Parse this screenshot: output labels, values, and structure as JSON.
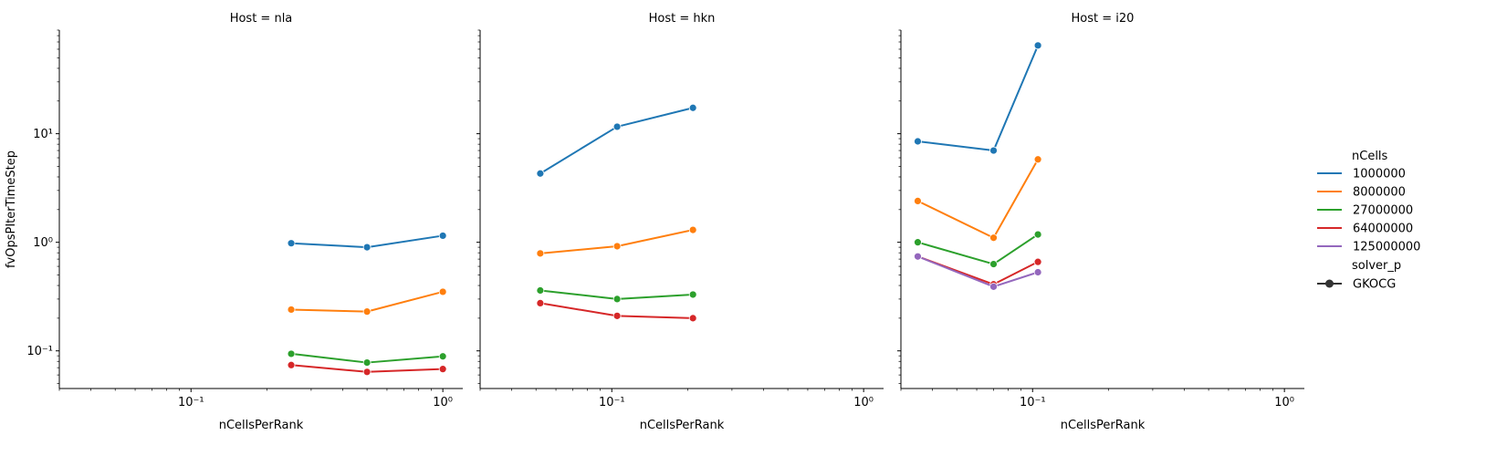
{
  "chart_data": {
    "type": "line",
    "x_scale": "log",
    "y_scale": "log",
    "xlabel": "nCellsPerRank",
    "ylabel": "fvOpsPIterTimeStep",
    "xlim": [
      0.03,
      1.2
    ],
    "ylim": [
      0.045,
      90
    ],
    "x_ticks": [
      {
        "value": 0.1,
        "label": "10⁻¹"
      },
      {
        "value": 1,
        "label": "10⁰"
      }
    ],
    "y_ticks": [
      {
        "value": 0.1,
        "label": "10⁻¹"
      },
      {
        "value": 1,
        "label": "10⁰"
      },
      {
        "value": 10,
        "label": "10¹"
      }
    ],
    "legend": {
      "placement": "right",
      "hue_title": "nCells",
      "style_title": "solver_p",
      "style_entries": [
        "GKOCG"
      ]
    },
    "colors": {
      "1000000": "#1f77b4",
      "8000000": "#ff7f0e",
      "27000000": "#2ca02c",
      "64000000": "#d62728",
      "125000000": "#9467bd"
    },
    "series_names": [
      "1000000",
      "8000000",
      "27000000",
      "64000000",
      "125000000"
    ],
    "panels": [
      {
        "title": "Host = nla",
        "x": [
          0.25,
          0.5,
          1.0
        ],
        "series": [
          {
            "name": "1000000",
            "values": [
              0.98,
              0.9,
              1.15
            ]
          },
          {
            "name": "8000000",
            "values": [
              0.24,
              0.23,
              0.35
            ]
          },
          {
            "name": "27000000",
            "values": [
              0.094,
              0.078,
              0.089
            ]
          },
          {
            "name": "64000000",
            "values": [
              0.074,
              0.064,
              0.068
            ]
          }
        ]
      },
      {
        "title": "Host = hkn",
        "x": [
          0.052,
          0.105,
          0.21
        ],
        "series": [
          {
            "name": "1000000",
            "values": [
              4.3,
              11.6,
              17.3
            ]
          },
          {
            "name": "8000000",
            "values": [
              0.79,
              0.92,
              1.3
            ]
          },
          {
            "name": "27000000",
            "values": [
              0.36,
              0.3,
              0.33
            ]
          },
          {
            "name": "64000000",
            "values": [
              0.275,
              0.21,
              0.2
            ]
          }
        ]
      },
      {
        "title": "Host = i20",
        "x": [
          0.035,
          0.07,
          0.105
        ],
        "series": [
          {
            "name": "1000000",
            "values": [
              8.5,
              7.0,
              65.0
            ]
          },
          {
            "name": "8000000",
            "values": [
              2.4,
              1.1,
              5.8
            ]
          },
          {
            "name": "27000000",
            "values": [
              1.0,
              0.63,
              1.18
            ]
          },
          {
            "name": "64000000",
            "values": [
              0.74,
              0.41,
              0.66
            ]
          },
          {
            "name": "125000000",
            "values": [
              0.74,
              0.39,
              0.53
            ]
          }
        ]
      }
    ]
  }
}
